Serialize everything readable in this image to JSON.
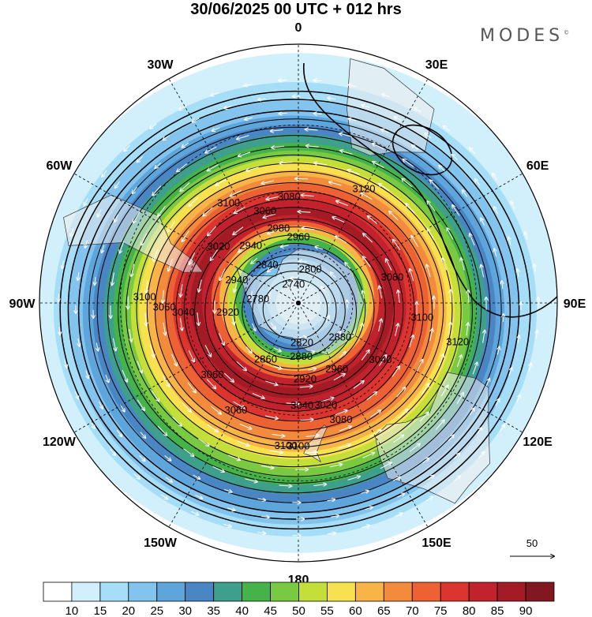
{
  "title": "30/06/2025  00 UTC  + 012 hrs",
  "brand": "MODES",
  "brand_mark": "©",
  "longitude_labels": [
    {
      "lon": 0,
      "text": "0"
    },
    {
      "lon": 30,
      "text": "30E"
    },
    {
      "lon": 60,
      "text": "60E"
    },
    {
      "lon": 90,
      "text": "90E"
    },
    {
      "lon": 120,
      "text": "120E"
    },
    {
      "lon": 150,
      "text": "150E"
    },
    {
      "lon": 180,
      "text": "180"
    },
    {
      "lon": -150,
      "text": "150W"
    },
    {
      "lon": -120,
      "text": "120W"
    },
    {
      "lon": -90,
      "text": "90W"
    },
    {
      "lon": -60,
      "text": "60W"
    },
    {
      "lon": -30,
      "text": "30W"
    }
  ],
  "contour_labels": [
    {
      "text": "3080",
      "lon": -5,
      "lat": -52
    },
    {
      "text": "3060",
      "lon": -20,
      "lat": -55
    },
    {
      "text": "3100",
      "lon": -35,
      "lat": -47
    },
    {
      "text": "3120",
      "lon": 30,
      "lat": -44
    },
    {
      "text": "2980",
      "lon": -15,
      "lat": -62
    },
    {
      "text": "2960",
      "lon": 0,
      "lat": -66
    },
    {
      "text": "2940",
      "lon": -40,
      "lat": -63
    },
    {
      "text": "3020",
      "lon": -55,
      "lat": -55
    },
    {
      "text": "2800",
      "lon": 20,
      "lat": -77
    },
    {
      "text": "2840",
      "lon": -40,
      "lat": -72
    },
    {
      "text": "2940",
      "lon": -70,
      "lat": -66
    },
    {
      "text": "2740",
      "lon": -15,
      "lat": -83
    },
    {
      "text": "2780",
      "lon": -85,
      "lat": -75
    },
    {
      "text": "3100",
      "lon": -88,
      "lat": -37
    },
    {
      "text": "3060",
      "lon": -92,
      "lat": -43
    },
    {
      "text": "3040",
      "lon": -95,
      "lat": -49
    },
    {
      "text": "2920",
      "lon": -98,
      "lat": -64
    },
    {
      "text": "3080",
      "lon": 75,
      "lat": -55
    },
    {
      "text": "3100",
      "lon": 97,
      "lat": -46
    },
    {
      "text": "3120",
      "lon": 104,
      "lat": -34
    },
    {
      "text": "2880",
      "lon": 130,
      "lat": -70
    },
    {
      "text": "3040",
      "lon": 125,
      "lat": -54
    },
    {
      "text": "2960",
      "lon": 150,
      "lat": -62
    },
    {
      "text": "2920",
      "lon": 175,
      "lat": -62
    },
    {
      "text": "2860",
      "lon": -150,
      "lat": -66
    },
    {
      "text": "2880",
      "lon": 177,
      "lat": -70
    },
    {
      "text": "2820",
      "lon": 175,
      "lat": -75
    },
    {
      "text": "3020",
      "lon": 165,
      "lat": -52
    },
    {
      "text": "3040",
      "lon": 178,
      "lat": -53
    },
    {
      "text": "3060",
      "lon": -130,
      "lat": -50
    },
    {
      "text": "3060",
      "lon": -150,
      "lat": -46
    },
    {
      "text": "3080",
      "lon": 160,
      "lat": -46
    },
    {
      "text": "3100",
      "lon": -175,
      "lat": -40
    },
    {
      "text": "3100",
      "lon": 180,
      "lat": -40
    }
  ],
  "vector_scale_label": "50",
  "colorbar": {
    "ticks": [
      "10",
      "15",
      "20",
      "25",
      "30",
      "35",
      "40",
      "45",
      "50",
      "55",
      "60",
      "65",
      "70",
      "75",
      "80",
      "85",
      "90"
    ],
    "colors": [
      "#ffffff",
      "#d2f0fb",
      "#a6def7",
      "#82c4ee",
      "#5ea5dc",
      "#4b86c4",
      "#3e9f8c",
      "#45b34a",
      "#7ac943",
      "#c4de3a",
      "#f7e14f",
      "#f8b447",
      "#f38b3c",
      "#ed6233",
      "#dc342e",
      "#c2222d",
      "#a31b25",
      "#831720"
    ]
  }
}
